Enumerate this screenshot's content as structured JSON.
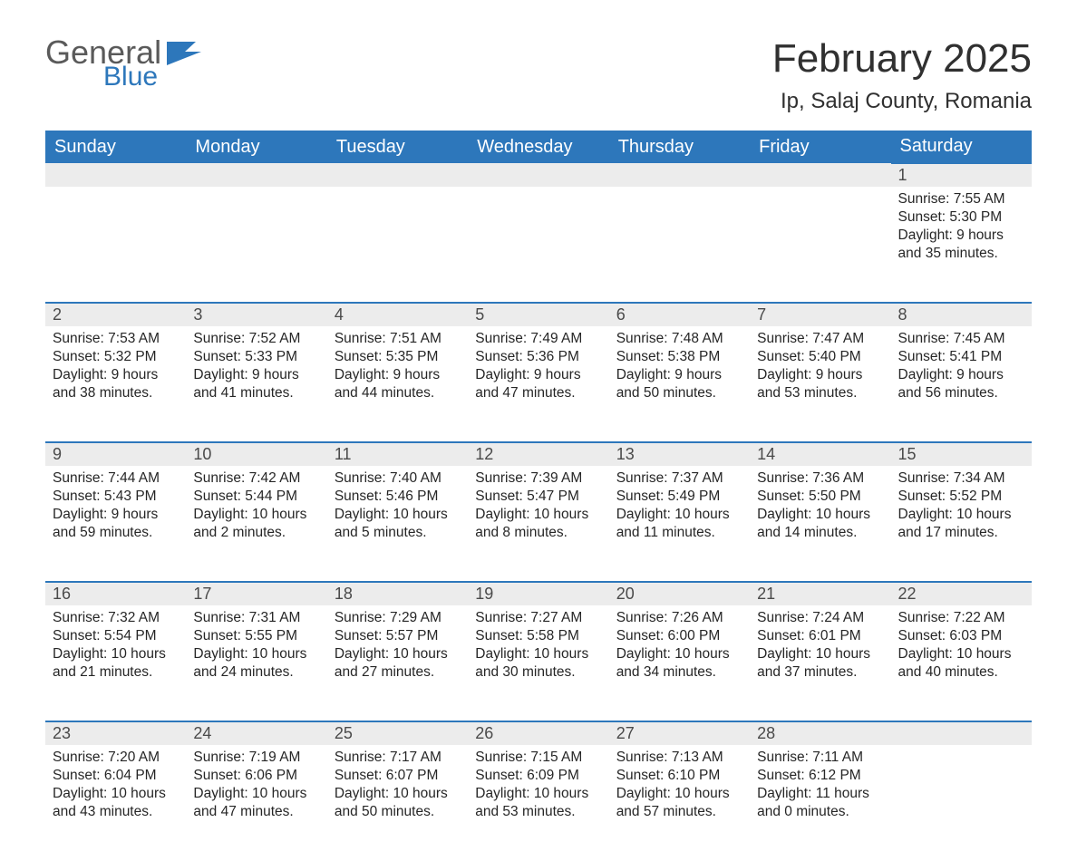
{
  "logo": {
    "word1": "General",
    "word2": "Blue"
  },
  "title": "February 2025",
  "location": "Ip, Salaj County, Romania",
  "colors": {
    "header_bg": "#2d77bb",
    "header_text": "#ffffff",
    "daynum_bg": "#ececec",
    "daynum_border": "#2d77bb",
    "body_bg": "#ffffff",
    "text": "#262626",
    "logo_gray": "#5a5a5a",
    "logo_blue": "#2d77bb"
  },
  "typography": {
    "month_title_pt": 44,
    "location_pt": 24,
    "weekday_pt": 20,
    "daynum_pt": 18,
    "cell_pt": 15.5
  },
  "weekdays": [
    "Sunday",
    "Monday",
    "Tuesday",
    "Wednesday",
    "Thursday",
    "Friday",
    "Saturday"
  ],
  "layout": {
    "first_weekday_index": 6,
    "days_in_month": 28,
    "cols": 7
  },
  "days": {
    "1": {
      "sunrise": "7:55 AM",
      "sunset": "5:30 PM",
      "daylight": "9 hours and 35 minutes."
    },
    "2": {
      "sunrise": "7:53 AM",
      "sunset": "5:32 PM",
      "daylight": "9 hours and 38 minutes."
    },
    "3": {
      "sunrise": "7:52 AM",
      "sunset": "5:33 PM",
      "daylight": "9 hours and 41 minutes."
    },
    "4": {
      "sunrise": "7:51 AM",
      "sunset": "5:35 PM",
      "daylight": "9 hours and 44 minutes."
    },
    "5": {
      "sunrise": "7:49 AM",
      "sunset": "5:36 PM",
      "daylight": "9 hours and 47 minutes."
    },
    "6": {
      "sunrise": "7:48 AM",
      "sunset": "5:38 PM",
      "daylight": "9 hours and 50 minutes."
    },
    "7": {
      "sunrise": "7:47 AM",
      "sunset": "5:40 PM",
      "daylight": "9 hours and 53 minutes."
    },
    "8": {
      "sunrise": "7:45 AM",
      "sunset": "5:41 PM",
      "daylight": "9 hours and 56 minutes."
    },
    "9": {
      "sunrise": "7:44 AM",
      "sunset": "5:43 PM",
      "daylight": "9 hours and 59 minutes."
    },
    "10": {
      "sunrise": "7:42 AM",
      "sunset": "5:44 PM",
      "daylight": "10 hours and 2 minutes."
    },
    "11": {
      "sunrise": "7:40 AM",
      "sunset": "5:46 PM",
      "daylight": "10 hours and 5 minutes."
    },
    "12": {
      "sunrise": "7:39 AM",
      "sunset": "5:47 PM",
      "daylight": "10 hours and 8 minutes."
    },
    "13": {
      "sunrise": "7:37 AM",
      "sunset": "5:49 PM",
      "daylight": "10 hours and 11 minutes."
    },
    "14": {
      "sunrise": "7:36 AM",
      "sunset": "5:50 PM",
      "daylight": "10 hours and 14 minutes."
    },
    "15": {
      "sunrise": "7:34 AM",
      "sunset": "5:52 PM",
      "daylight": "10 hours and 17 minutes."
    },
    "16": {
      "sunrise": "7:32 AM",
      "sunset": "5:54 PM",
      "daylight": "10 hours and 21 minutes."
    },
    "17": {
      "sunrise": "7:31 AM",
      "sunset": "5:55 PM",
      "daylight": "10 hours and 24 minutes."
    },
    "18": {
      "sunrise": "7:29 AM",
      "sunset": "5:57 PM",
      "daylight": "10 hours and 27 minutes."
    },
    "19": {
      "sunrise": "7:27 AM",
      "sunset": "5:58 PM",
      "daylight": "10 hours and 30 minutes."
    },
    "20": {
      "sunrise": "7:26 AM",
      "sunset": "6:00 PM",
      "daylight": "10 hours and 34 minutes."
    },
    "21": {
      "sunrise": "7:24 AM",
      "sunset": "6:01 PM",
      "daylight": "10 hours and 37 minutes."
    },
    "22": {
      "sunrise": "7:22 AM",
      "sunset": "6:03 PM",
      "daylight": "10 hours and 40 minutes."
    },
    "23": {
      "sunrise": "7:20 AM",
      "sunset": "6:04 PM",
      "daylight": "10 hours and 43 minutes."
    },
    "24": {
      "sunrise": "7:19 AM",
      "sunset": "6:06 PM",
      "daylight": "10 hours and 47 minutes."
    },
    "25": {
      "sunrise": "7:17 AM",
      "sunset": "6:07 PM",
      "daylight": "10 hours and 50 minutes."
    },
    "26": {
      "sunrise": "7:15 AM",
      "sunset": "6:09 PM",
      "daylight": "10 hours and 53 minutes."
    },
    "27": {
      "sunrise": "7:13 AM",
      "sunset": "6:10 PM",
      "daylight": "10 hours and 57 minutes."
    },
    "28": {
      "sunrise": "7:11 AM",
      "sunset": "6:12 PM",
      "daylight": "11 hours and 0 minutes."
    }
  },
  "labels": {
    "sunrise": "Sunrise:",
    "sunset": "Sunset:",
    "daylight": "Daylight:"
  }
}
